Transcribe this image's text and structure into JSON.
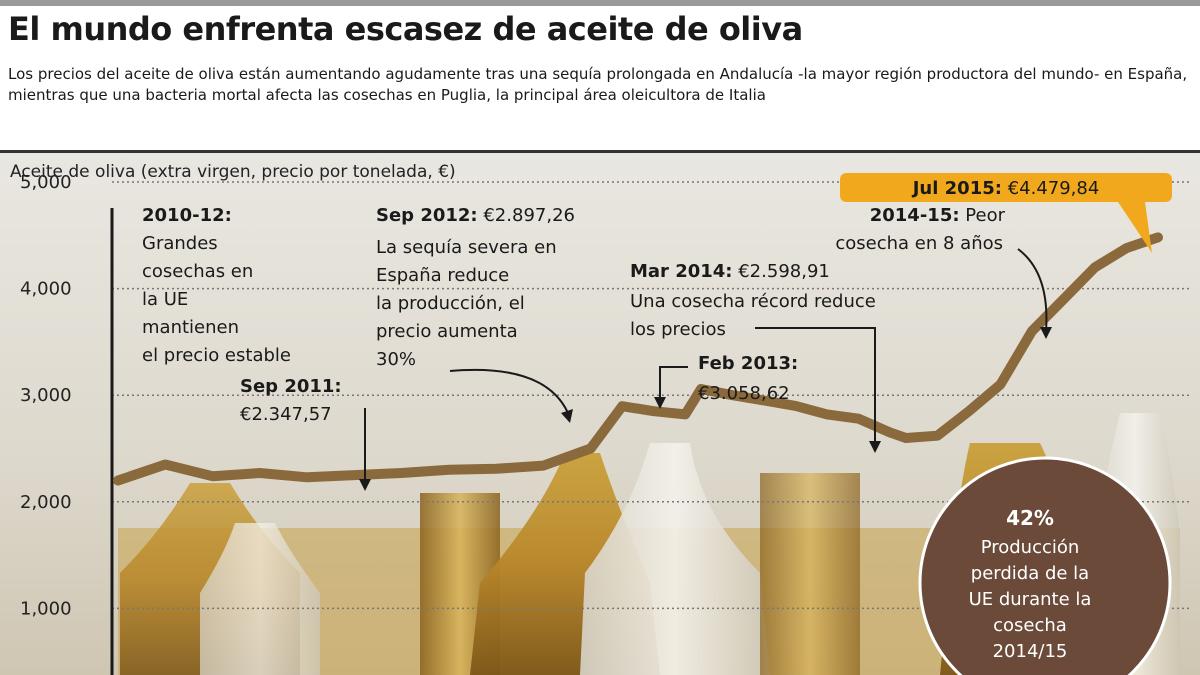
{
  "title": "El mundo enfrenta escasez de aceite de oliva",
  "subtitle": "Los precios del aceite de oliva están aumentando agudamente tras una sequía prolongada en Andalucía -la mayor región productora del mundo- en España, mientras que una bacteria mortal afecta las cosechas en Puglia, la principal área oleicultora de Italia",
  "colors": {
    "line": "#8a6a3c",
    "callout": "#f2a81d",
    "circle": "#6b4a3a",
    "grid": "#777777"
  },
  "chart_data": {
    "type": "line",
    "title": "",
    "ylabel": "Aceite de oliva (extra virgen, precio por tonelada, €)",
    "xlabel": "",
    "ylim": [
      0,
      5000
    ],
    "yticks": [
      1000,
      2000,
      3000,
      4000,
      5000
    ],
    "ytick_labels": [
      "1,000",
      "2,000",
      "3,000",
      "4,000",
      "5,000"
    ],
    "grid": true,
    "series": [
      {
        "x": [
          "2010-01",
          "2010-04",
          "2010-07",
          "2010-10",
          "2011-01",
          "2011-04",
          "2011-07",
          "2011-10",
          "2012-01",
          "2012-04",
          "2012-07",
          "2012-09",
          "2012-11",
          "2013-01",
          "2013-02",
          "2013-04",
          "2013-06",
          "2013-08",
          "2013-10",
          "2013-12",
          "2014-02",
          "2014-03",
          "2014-05",
          "2014-07",
          "2014-09",
          "2014-11",
          "2015-01",
          "2015-03",
          "2015-05",
          "2015-07"
        ],
        "values": [
          2200,
          2350,
          2240,
          2270,
          2230,
          2250,
          2270,
          2300,
          2310,
          2340,
          2500,
          2897.26,
          2850,
          2820,
          3058.62,
          3000,
          2950,
          2900,
          2820,
          2780,
          2650,
          2598.91,
          2620,
          2850,
          3100,
          3600,
          3900,
          4200,
          4380,
          4479.84
        ]
      }
    ],
    "annotations": [
      {
        "label": "2010-12:",
        "text": [
          "Grandes",
          "cosechas en",
          "la UE",
          "mantienen",
          "el precio estable"
        ]
      },
      {
        "label": "Sep 2011:",
        "text": [
          "€2.347,57"
        ]
      },
      {
        "label": "Sep 2012:",
        "value": "€2.897,26",
        "text": [
          "La sequía severa en",
          "España reduce",
          "la producción, el",
          "precio aumenta",
          "30%"
        ]
      },
      {
        "label": "Feb 2013:",
        "text": [
          "€3.058,62"
        ]
      },
      {
        "label": "Mar 2014:",
        "value": "€2.598,91",
        "text": [
          "Una cosecha récord reduce",
          "los precios"
        ]
      },
      {
        "label": "2014-15:",
        "value": "Peor",
        "text": [
          "cosecha en 8 años"
        ]
      },
      {
        "label": "Jul 2015:",
        "value": "€4.479,84"
      }
    ],
    "highlight": {
      "value": "42%",
      "text": [
        "Producción",
        "perdida de la",
        "UE durante la",
        "cosecha",
        "2014/15"
      ]
    }
  }
}
